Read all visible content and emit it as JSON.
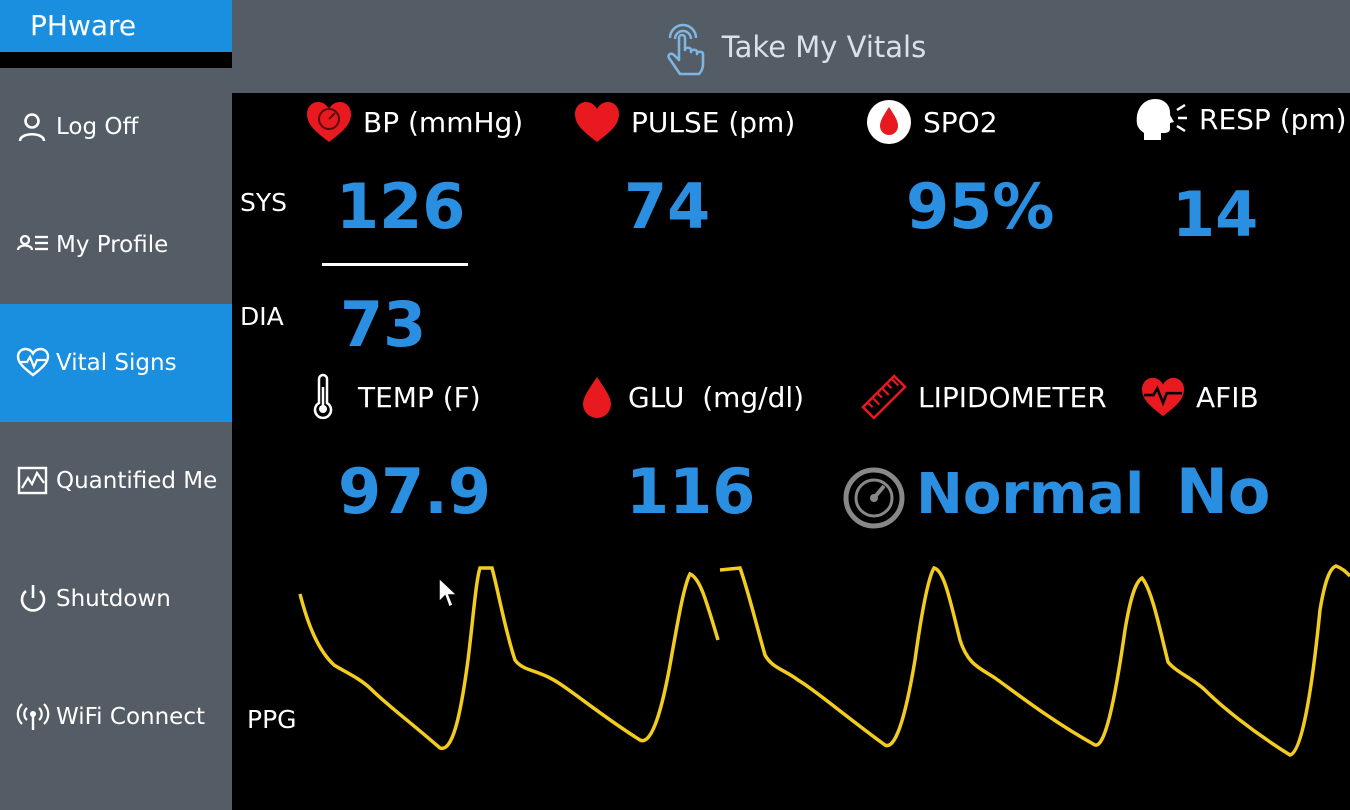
{
  "app": {
    "brand": "PHware"
  },
  "sidebar": {
    "items": [
      {
        "label": "Log Off",
        "icon": "person-icon"
      },
      {
        "label": "My Profile",
        "icon": "profile-list-icon"
      },
      {
        "label": "Vital Signs",
        "icon": "heart-pulse-icon",
        "active": true
      },
      {
        "label": "Quantified Me",
        "icon": "chart-icon"
      },
      {
        "label": "Shutdown",
        "icon": "power-icon"
      },
      {
        "label": "WiFi Connect",
        "icon": "wifi-icon"
      }
    ]
  },
  "header": {
    "title": "Take My Vitals",
    "icon": "tap-hand-icon"
  },
  "vitals": {
    "bp": {
      "label": "BP (mmHg)",
      "sys_label": "SYS",
      "dia_label": "DIA",
      "sys": "126",
      "dia": "73"
    },
    "pulse": {
      "label": "PULSE (pm)",
      "value": "74"
    },
    "spo2": {
      "label": "SPO2",
      "value": "95%"
    },
    "resp": {
      "label": "RESP (pm)",
      "value": "14"
    },
    "temp": {
      "label": "TEMP (F)",
      "value": "97.9"
    },
    "glu": {
      "label": "GLU  (mg/dl)",
      "value": "116"
    },
    "lipid": {
      "label": "LIPIDOMETER",
      "value": "Normal"
    },
    "afib": {
      "label": "AFIB",
      "value": "No"
    }
  },
  "ppg": {
    "label": "PPG"
  },
  "colors": {
    "accent": "#1a8fe0",
    "value_blue": "#2a8fe0",
    "icon_red": "#e8191f",
    "ppg_yellow": "#f2cc1f",
    "sidebar_gray": "#545d66"
  }
}
